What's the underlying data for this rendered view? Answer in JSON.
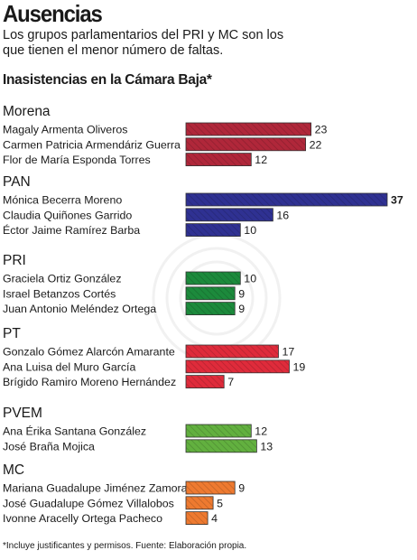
{
  "header": {
    "title": "Ausencias",
    "subtitle": "Los grupos parlamentarios del PRI y MC son los que tienen el menor número de faltas.",
    "chart_heading": "Inasistencias en la Cámara Baja*"
  },
  "footnote": "*Incluye justificantes y permisos. Fuente: Elaboración propia.",
  "chart_data": {
    "type": "bar",
    "orientation": "horizontal",
    "title": "Inasistencias en la Cámara Baja*",
    "xlim": [
      0,
      37
    ],
    "grid": false,
    "groups": [
      {
        "name": "Morena",
        "color": "#b0273a",
        "items": [
          {
            "label": "Magaly Armenta Oliveros",
            "value": 23
          },
          {
            "label": "Carmen Patricia Armendáriz Guerra",
            "value": 22
          },
          {
            "label": "Flor de María Esponda Torres",
            "value": 12
          }
        ]
      },
      {
        "name": "PAN",
        "color": "#2f3192",
        "items": [
          {
            "label": "Mónica Becerra Moreno",
            "value": 37,
            "highlight": true
          },
          {
            "label": "Claudia Quiñones Garrido",
            "value": 16
          },
          {
            "label": "Éctor Jaime Ramírez Barba",
            "value": 10
          }
        ]
      },
      {
        "name": "PRI",
        "color": "#1c8a3c",
        "items": [
          {
            "label": "Graciela Ortiz González",
            "value": 10
          },
          {
            "label": "Israel Betanzos Cortés",
            "value": 9
          },
          {
            "label": "Juan Antonio Meléndez Ortega",
            "value": 9
          }
        ]
      },
      {
        "name": "PT",
        "color": "#df2b3b",
        "items": [
          {
            "label": "Gonzalo Gómez Alarcón Amarante",
            "value": 17
          },
          {
            "label": "Ana Luisa del Muro García",
            "value": 19
          },
          {
            "label": "Brígido Ramiro Moreno Hernández",
            "value": 7
          }
        ]
      },
      {
        "name": "PVEM",
        "color": "#62b03f",
        "items": [
          {
            "label": "Ana Érika Santana González",
            "value": 12
          },
          {
            "label": "José Braña Mojica",
            "value": 13
          }
        ]
      },
      {
        "name": "MC",
        "color": "#ee7a30",
        "items": [
          {
            "label": "Mariana Guadalupe Jiménez Zamora",
            "value": 9
          },
          {
            "label": "José Guadalupe Gómez Villalobos",
            "value": 5
          },
          {
            "label": "Ivonne Aracelly Ortega Pacheco",
            "value": 4
          }
        ]
      }
    ]
  }
}
